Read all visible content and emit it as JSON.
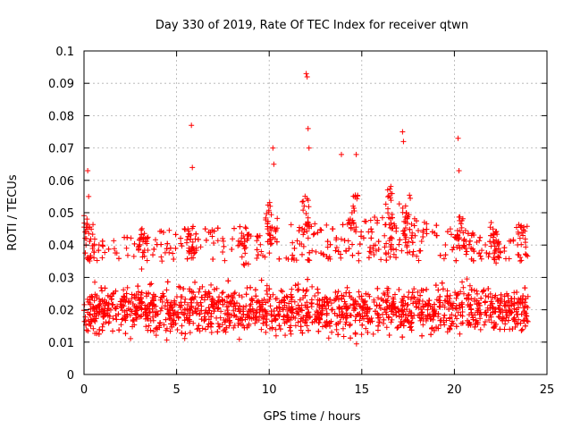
{
  "chart_data": {
    "type": "scatter",
    "title": "Day 330 of 2019, Rate Of TEC Index for receiver qtwn",
    "xlabel": "GPS time / hours",
    "ylabel": "ROTI / TECUs",
    "xlim": [
      0,
      25
    ],
    "ylim": [
      0,
      0.1
    ],
    "xticks": [
      0,
      5,
      10,
      15,
      20,
      25
    ],
    "xtick_labels": [
      "0",
      "5",
      "10",
      "15",
      "20",
      "25"
    ],
    "yticks": [
      0,
      0.01,
      0.02,
      0.03,
      0.04,
      0.05,
      0.06,
      0.07,
      0.08,
      0.09,
      0.1
    ],
    "ytick_labels": [
      "0",
      "0.01",
      "0.02",
      "0.03",
      "0.04",
      "0.05",
      "0.06",
      "0.07",
      "0.08",
      "0.09",
      "0.1"
    ],
    "grid": true,
    "marker": "plus",
    "color": "#ff0000",
    "series": [
      {
        "x_range": [
          0,
          24
        ],
        "typical_y_range": [
          0.007,
          0.035
        ],
        "dense_band_y_range": [
          0.012,
          0.028
        ],
        "notable_points": [
          {
            "x": 0.2,
            "y": 0.063
          },
          {
            "x": 0.25,
            "y": 0.055
          },
          {
            "x": 5.8,
            "y": 0.077
          },
          {
            "x": 5.85,
            "y": 0.064
          },
          {
            "x": 10.2,
            "y": 0.07
          },
          {
            "x": 10.25,
            "y": 0.065
          },
          {
            "x": 12.0,
            "y": 0.093
          },
          {
            "x": 12.05,
            "y": 0.092
          },
          {
            "x": 12.1,
            "y": 0.076
          },
          {
            "x": 12.15,
            "y": 0.07
          },
          {
            "x": 17.2,
            "y": 0.075
          },
          {
            "x": 17.25,
            "y": 0.072
          },
          {
            "x": 20.2,
            "y": 0.073
          },
          {
            "x": 20.25,
            "y": 0.063
          },
          {
            "x": 14.7,
            "y": 0.068
          },
          {
            "x": 13.9,
            "y": 0.068
          }
        ]
      }
    ]
  }
}
